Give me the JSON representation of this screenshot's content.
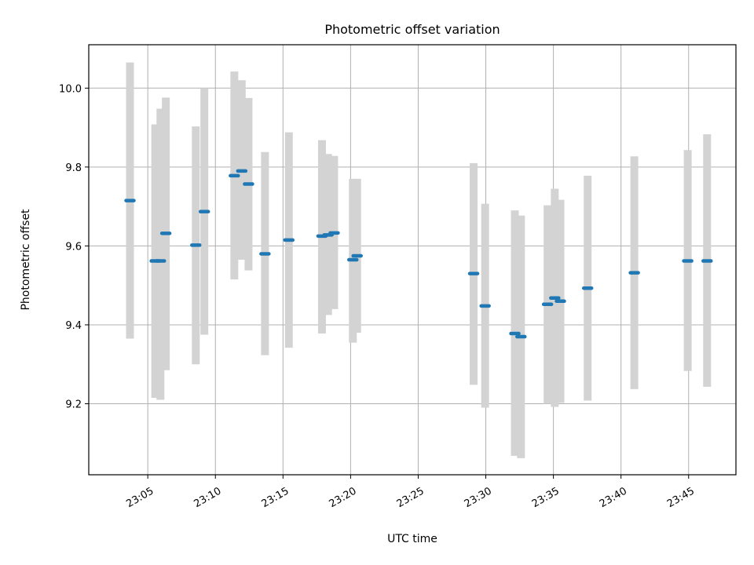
{
  "chart_data": {
    "type": "scatter",
    "title": "Photometric offset variation",
    "xlabel": "UTC time",
    "ylabel": "Photometric offset",
    "x_range": [
      "23:00:38",
      "23:48:30"
    ],
    "ylim": [
      9.02,
      10.11
    ],
    "x_ticks": [
      "23:05",
      "23:10",
      "23:15",
      "23:20",
      "23:25",
      "23:30",
      "23:35",
      "23:40",
      "23:45"
    ],
    "y_ticks": [
      "9.2",
      "9.4",
      "9.6",
      "9.8",
      "10.0"
    ],
    "grid": true,
    "colors": {
      "point": "#1f77b4",
      "errorbar": "#d3d3d3",
      "grid": "#b0b0b0"
    },
    "points": [
      {
        "t": "23:03:41",
        "y": 9.715,
        "err_lo": 9.365,
        "err_hi": 10.065
      },
      {
        "t": "23:05:33",
        "y": 9.562,
        "err_lo": 9.215,
        "err_hi": 9.908
      },
      {
        "t": "23:05:56",
        "y": 9.562,
        "err_lo": 9.21,
        "err_hi": 9.948
      },
      {
        "t": "23:06:20",
        "y": 9.632,
        "err_lo": 9.285,
        "err_hi": 9.976
      },
      {
        "t": "23:08:33",
        "y": 9.602,
        "err_lo": 9.3,
        "err_hi": 9.903
      },
      {
        "t": "23:09:11",
        "y": 9.687,
        "err_lo": 9.375,
        "err_hi": 10.0
      },
      {
        "t": "23:11:24",
        "y": 9.778,
        "err_lo": 9.515,
        "err_hi": 10.042
      },
      {
        "t": "23:11:57",
        "y": 9.79,
        "err_lo": 9.565,
        "err_hi": 10.02
      },
      {
        "t": "23:12:27",
        "y": 9.757,
        "err_lo": 9.538,
        "err_hi": 9.975
      },
      {
        "t": "23:13:40",
        "y": 9.58,
        "err_lo": 9.323,
        "err_hi": 9.838
      },
      {
        "t": "23:15:26",
        "y": 9.615,
        "err_lo": 9.342,
        "err_hi": 9.888
      },
      {
        "t": "23:17:53",
        "y": 9.625,
        "err_lo": 9.378,
        "err_hi": 9.868
      },
      {
        "t": "23:18:20",
        "y": 9.628,
        "err_lo": 9.425,
        "err_hi": 9.833
      },
      {
        "t": "23:18:47",
        "y": 9.633,
        "err_lo": 9.44,
        "err_hi": 9.828
      },
      {
        "t": "23:20:10",
        "y": 9.565,
        "err_lo": 9.355,
        "err_hi": 9.77
      },
      {
        "t": "23:20:29",
        "y": 9.575,
        "err_lo": 9.38,
        "err_hi": 9.77
      },
      {
        "t": "23:29:06",
        "y": 9.53,
        "err_lo": 9.248,
        "err_hi": 9.81
      },
      {
        "t": "23:29:57",
        "y": 9.448,
        "err_lo": 9.19,
        "err_hi": 9.707
      },
      {
        "t": "23:32:09",
        "y": 9.378,
        "err_lo": 9.068,
        "err_hi": 9.69
      },
      {
        "t": "23:32:36",
        "y": 9.37,
        "err_lo": 9.062,
        "err_hi": 9.677
      },
      {
        "t": "23:34:34",
        "y": 9.452,
        "err_lo": 9.2,
        "err_hi": 9.703
      },
      {
        "t": "23:35:06",
        "y": 9.468,
        "err_lo": 9.192,
        "err_hi": 9.745
      },
      {
        "t": "23:35:31",
        "y": 9.46,
        "err_lo": 9.202,
        "err_hi": 9.717
      },
      {
        "t": "23:37:32",
        "y": 9.493,
        "err_lo": 9.208,
        "err_hi": 9.778
      },
      {
        "t": "23:40:59",
        "y": 9.532,
        "err_lo": 9.237,
        "err_hi": 9.827
      },
      {
        "t": "23:44:56",
        "y": 9.562,
        "err_lo": 9.283,
        "err_hi": 9.843
      },
      {
        "t": "23:46:22",
        "y": 9.562,
        "err_lo": 9.243,
        "err_hi": 9.883
      }
    ]
  }
}
